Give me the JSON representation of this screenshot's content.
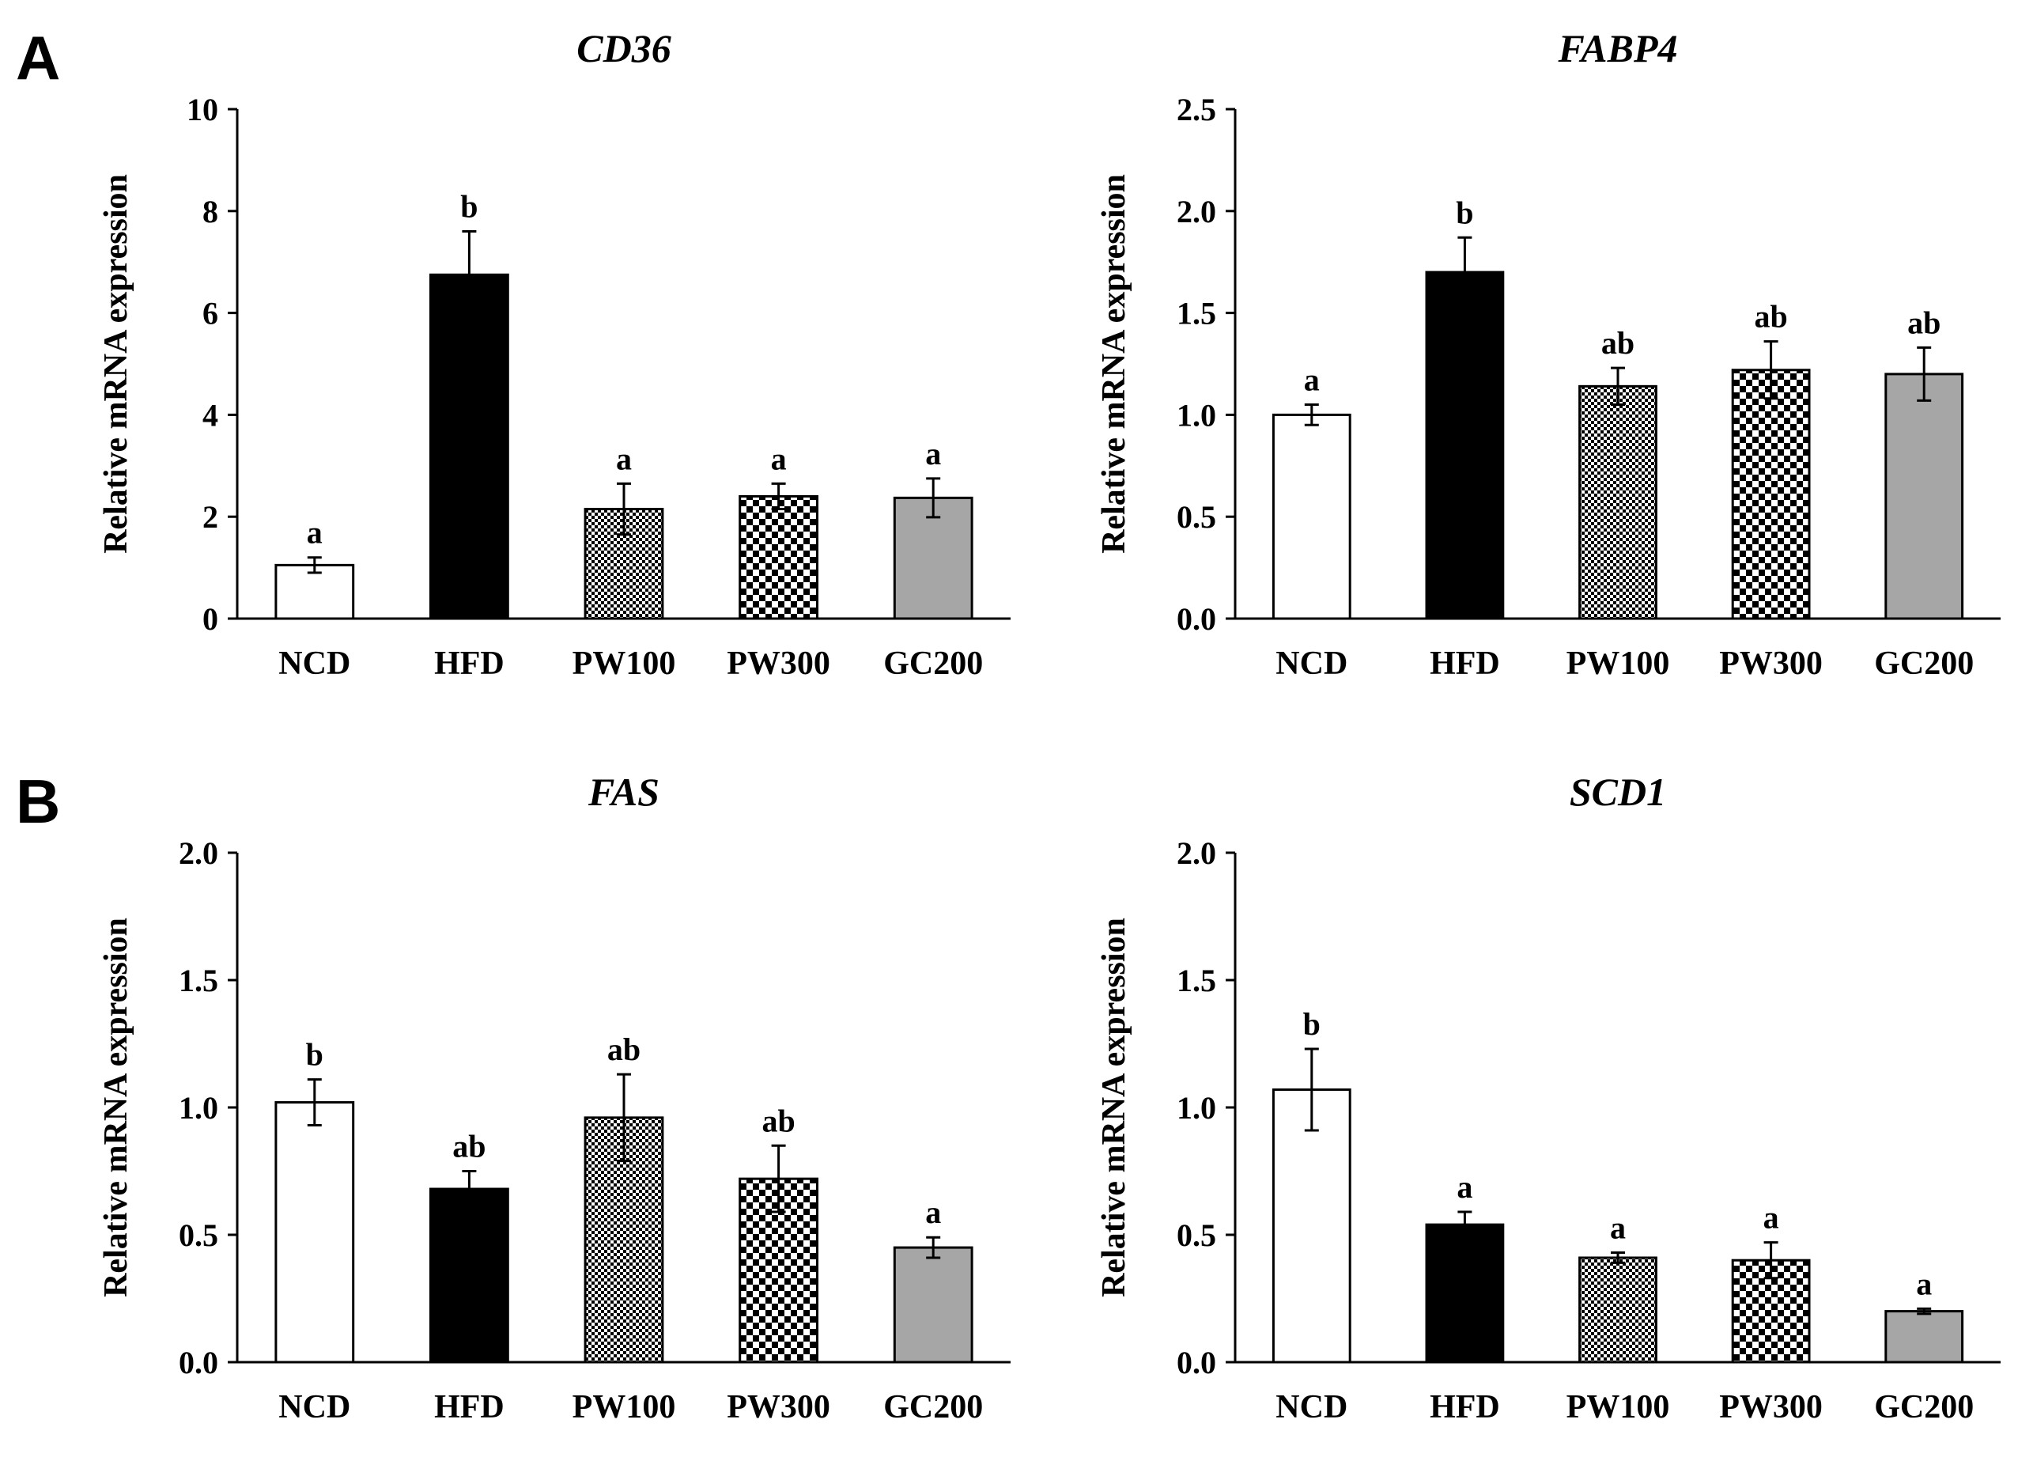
{
  "figure": {
    "panels": [
      {
        "letter": "A",
        "chart_index": 0
      },
      {
        "letter": "B",
        "chart_index": 2
      }
    ],
    "colors": {
      "NCD": "#ffffff",
      "HFD": "#000000",
      "PW100": "pattern-fine-check",
      "PW300": "pattern-coarse-check",
      "GC200": "#a6a6a6",
      "axis": "#000000"
    }
  },
  "chart_data": [
    {
      "type": "bar",
      "title": "CD36",
      "ylabel": "Relative mRNA expression",
      "xlabel": "",
      "categories": [
        "NCD",
        "HFD",
        "PW100",
        "PW300",
        "GC200"
      ],
      "values": [
        1.05,
        6.75,
        2.15,
        2.4,
        2.37
      ],
      "errors": [
        0.15,
        0.85,
        0.5,
        0.25,
        0.38
      ],
      "significance": [
        "a",
        "b",
        "a",
        "a",
        "a"
      ],
      "ylim": [
        0,
        10
      ],
      "yticks": [
        "0",
        "2",
        "4",
        "6",
        "8",
        "10"
      ],
      "ytick_values": [
        0,
        2,
        4,
        6,
        8,
        10
      ],
      "grid": false
    },
    {
      "type": "bar",
      "title": "FABP4",
      "ylabel": "Relative mRNA expression",
      "xlabel": "",
      "categories": [
        "NCD",
        "HFD",
        "PW100",
        "PW300",
        "GC200"
      ],
      "values": [
        1.0,
        1.7,
        1.14,
        1.22,
        1.2
      ],
      "errors": [
        0.05,
        0.17,
        0.09,
        0.14,
        0.13
      ],
      "significance": [
        "a",
        "b",
        "ab",
        "ab",
        "ab"
      ],
      "ylim": [
        0,
        2.5
      ],
      "yticks": [
        "0.0",
        "0.5",
        "1.0",
        "1.5",
        "2.0",
        "2.5"
      ],
      "ytick_values": [
        0,
        0.5,
        1.0,
        1.5,
        2.0,
        2.5
      ],
      "grid": false
    },
    {
      "type": "bar",
      "title": "FAS",
      "ylabel": "Relative mRNA expression",
      "xlabel": "",
      "categories": [
        "NCD",
        "HFD",
        "PW100",
        "PW300",
        "GC200"
      ],
      "values": [
        1.02,
        0.68,
        0.96,
        0.72,
        0.45
      ],
      "errors": [
        0.09,
        0.07,
        0.17,
        0.13,
        0.04
      ],
      "significance": [
        "b",
        "ab",
        "ab",
        "ab",
        "a"
      ],
      "ylim": [
        0,
        2.0
      ],
      "yticks": [
        "0.0",
        "0.5",
        "1.0",
        "1.5",
        "2.0"
      ],
      "ytick_values": [
        0,
        0.5,
        1.0,
        1.5,
        2.0
      ],
      "grid": false
    },
    {
      "type": "bar",
      "title": "SCD1",
      "ylabel": "Relative mRNA expression",
      "xlabel": "",
      "categories": [
        "NCD",
        "HFD",
        "PW100",
        "PW300",
        "GC200"
      ],
      "values": [
        1.07,
        0.54,
        0.41,
        0.4,
        0.2
      ],
      "errors": [
        0.16,
        0.05,
        0.02,
        0.07,
        0.01
      ],
      "significance": [
        "b",
        "a",
        "a",
        "a",
        "a"
      ],
      "ylim": [
        0,
        2.0
      ],
      "yticks": [
        "0.0",
        "0.5",
        "1.0",
        "1.5",
        "2.0"
      ],
      "ytick_values": [
        0,
        0.5,
        1.0,
        1.5,
        2.0
      ],
      "grid": false
    }
  ]
}
